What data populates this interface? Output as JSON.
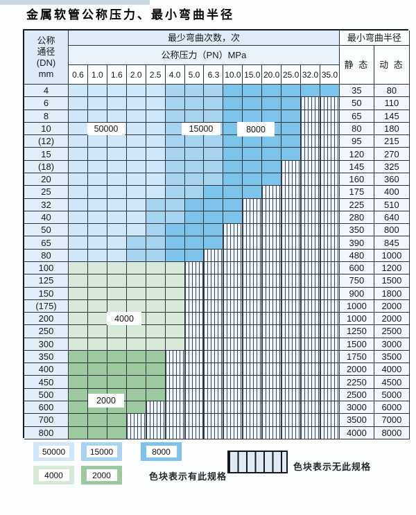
{
  "page": {
    "title": "金属软管公称压力、最小弯曲半径"
  },
  "table": {
    "dn_header_lines": [
      "公称",
      "通径",
      "(DN)",
      "mm"
    ],
    "bend_count_header": "最少弯曲次数，次",
    "pressure_header": "公称压力（PN）MPa",
    "radius_header": "最小弯曲半径",
    "static_header": "静 态",
    "dynamic_header": "动 态",
    "pressure_columns": [
      "0.6",
      "1.0",
      "1.6",
      "2.0",
      "2.5",
      "4.0",
      "5.0",
      "6.3",
      "10.0",
      "15.0",
      "20.0",
      "25.0",
      "32.0",
      "35.0"
    ],
    "zone_colors": {
      "b1": "#cfe7f8",
      "b2": "#a6d4f1",
      "b3": "#7cc4ec",
      "g1": "#d7ead9",
      "g2": "#9cc9a0"
    },
    "rows": [
      {
        "dn": "4",
        "static": "35",
        "dynamic": "80",
        "cells": [
          "b1",
          "b1",
          "b1",
          "b1",
          "b1",
          "b2",
          "b2",
          "b2",
          "b3",
          "b3",
          "b3",
          "b3",
          "b3",
          "b3"
        ]
      },
      {
        "dn": "6",
        "static": "50",
        "dynamic": "110",
        "cells": [
          "b1",
          "b1",
          "b1",
          "b1",
          "b1",
          "b2",
          "b2",
          "b2",
          "b3",
          "b3",
          "b3",
          "b3",
          "x",
          "x"
        ]
      },
      {
        "dn": "8",
        "static": "65",
        "dynamic": "145",
        "cells": [
          "b1",
          "b1",
          "b1",
          "b1",
          "b1",
          "b2",
          "b2",
          "b2",
          "b3",
          "b3",
          "b3",
          "b3",
          "x",
          "x"
        ]
      },
      {
        "dn": "10",
        "static": "80",
        "dynamic": "180",
        "cells": [
          "b1",
          "b1",
          "b1",
          "b1",
          "b1",
          "b2",
          "b2",
          "b2",
          "b3",
          "b3",
          "b3",
          "b3",
          "x",
          "x"
        ]
      },
      {
        "dn": "(12)",
        "static": "95",
        "dynamic": "215",
        "cells": [
          "b1",
          "b1",
          "b1",
          "b1",
          "b1",
          "b2",
          "b2",
          "b2",
          "b3",
          "b3",
          "b3",
          "b3",
          "x",
          "x"
        ]
      },
      {
        "dn": "15",
        "static": "120",
        "dynamic": "270",
        "cells": [
          "b1",
          "b1",
          "b1",
          "b1",
          "b1",
          "b2",
          "b2",
          "b2",
          "b3",
          "b3",
          "b3",
          "b3",
          "x",
          "x"
        ]
      },
      {
        "dn": "(18)",
        "static": "145",
        "dynamic": "325",
        "cells": [
          "b1",
          "b1",
          "b1",
          "b1",
          "b1",
          "b2",
          "b2",
          "b2",
          "b3",
          "b3",
          "b3",
          "x",
          "x",
          "x"
        ]
      },
      {
        "dn": "20",
        "static": "160",
        "dynamic": "360",
        "cells": [
          "b1",
          "b1",
          "b1",
          "b1",
          "b1",
          "b2",
          "b2",
          "b2",
          "b3",
          "b3",
          "b3",
          "x",
          "x",
          "x"
        ]
      },
      {
        "dn": "25",
        "static": "175",
        "dynamic": "400",
        "cells": [
          "b1",
          "b1",
          "b1",
          "b1",
          "b1",
          "b2",
          "b2",
          "b3",
          "b3",
          "b3",
          "x",
          "x",
          "x",
          "x"
        ]
      },
      {
        "dn": "32",
        "static": "225",
        "dynamic": "510",
        "cells": [
          "b1",
          "b1",
          "b1",
          "b1",
          "b2",
          "b2",
          "b3",
          "b3",
          "b3",
          "x",
          "x",
          "x",
          "x",
          "x"
        ]
      },
      {
        "dn": "40",
        "static": "280",
        "dynamic": "640",
        "cells": [
          "b1",
          "b1",
          "b1",
          "b1",
          "b2",
          "b2",
          "b3",
          "b3",
          "b3",
          "x",
          "x",
          "x",
          "x",
          "x"
        ]
      },
      {
        "dn": "50",
        "static": "350",
        "dynamic": "800",
        "cells": [
          "b1",
          "b1",
          "b1",
          "b1",
          "b2",
          "b3",
          "b3",
          "b3",
          "x",
          "x",
          "x",
          "x",
          "x",
          "x"
        ]
      },
      {
        "dn": "65",
        "static": "390",
        "dynamic": "845",
        "cells": [
          "b1",
          "b1",
          "b1",
          "b2",
          "b2",
          "b3",
          "b3",
          "b3",
          "x",
          "x",
          "x",
          "x",
          "x",
          "x"
        ]
      },
      {
        "dn": "80",
        "static": "480",
        "dynamic": "1000",
        "cells": [
          "b1",
          "b1",
          "b1",
          "b2",
          "b2",
          "b3",
          "b3",
          "x",
          "x",
          "x",
          "x",
          "x",
          "x",
          "x"
        ]
      },
      {
        "dn": "100",
        "static": "600",
        "dynamic": "1200",
        "cells": [
          "g1",
          "g1",
          "g1",
          "g1",
          "g1",
          "g1",
          "x",
          "x",
          "x",
          "x",
          "x",
          "x",
          "x",
          "x"
        ]
      },
      {
        "dn": "125",
        "static": "750",
        "dynamic": "1500",
        "cells": [
          "g1",
          "g1",
          "g1",
          "g1",
          "g1",
          "g1",
          "x",
          "x",
          "x",
          "x",
          "x",
          "x",
          "x",
          "x"
        ]
      },
      {
        "dn": "150",
        "static": "900",
        "dynamic": "1800",
        "cells": [
          "g1",
          "g1",
          "g1",
          "g1",
          "g1",
          "g1",
          "x",
          "x",
          "x",
          "x",
          "x",
          "x",
          "x",
          "x"
        ]
      },
      {
        "dn": "(175)",
        "static": "1000",
        "dynamic": "2000",
        "cells": [
          "g1",
          "g1",
          "g1",
          "g1",
          "g1",
          "g1",
          "x",
          "x",
          "x",
          "x",
          "x",
          "x",
          "x",
          "x"
        ]
      },
      {
        "dn": "200",
        "static": "1000",
        "dynamic": "2000",
        "cells": [
          "g1",
          "g1",
          "g1",
          "g1",
          "g1",
          "g1",
          "x",
          "x",
          "x",
          "x",
          "x",
          "x",
          "x",
          "x"
        ]
      },
      {
        "dn": "250",
        "static": "1250",
        "dynamic": "2500",
        "cells": [
          "g1",
          "g1",
          "g1",
          "g1",
          "g1",
          "g1",
          "x",
          "x",
          "x",
          "x",
          "x",
          "x",
          "x",
          "x"
        ]
      },
      {
        "dn": "300",
        "static": "1500",
        "dynamic": "3000",
        "cells": [
          "g1",
          "g1",
          "g1",
          "g1",
          "g1",
          "g1",
          "x",
          "x",
          "x",
          "x",
          "x",
          "x",
          "x",
          "x"
        ]
      },
      {
        "dn": "350",
        "static": "1750",
        "dynamic": "3500",
        "cells": [
          "g2",
          "g2",
          "g2",
          "g2",
          "g2",
          "x",
          "x",
          "x",
          "x",
          "x",
          "x",
          "x",
          "x",
          "x"
        ]
      },
      {
        "dn": "400",
        "static": "2000",
        "dynamic": "4000",
        "cells": [
          "g2",
          "g2",
          "g2",
          "g2",
          "g2",
          "x",
          "x",
          "x",
          "x",
          "x",
          "x",
          "x",
          "x",
          "x"
        ]
      },
      {
        "dn": "450",
        "static": "2250",
        "dynamic": "4500",
        "cells": [
          "g2",
          "g2",
          "g2",
          "g2",
          "g2",
          "x",
          "x",
          "x",
          "x",
          "x",
          "x",
          "x",
          "x",
          "x"
        ]
      },
      {
        "dn": "500",
        "static": "2500",
        "dynamic": "5000",
        "cells": [
          "g2",
          "g2",
          "g2",
          "g2",
          "g2",
          "x",
          "x",
          "x",
          "x",
          "x",
          "x",
          "x",
          "x",
          "x"
        ]
      },
      {
        "dn": "600",
        "static": "3000",
        "dynamic": "6000",
        "cells": [
          "g2",
          "g2",
          "g2",
          "g2",
          "x",
          "x",
          "x",
          "x",
          "x",
          "x",
          "x",
          "x",
          "x",
          "x"
        ]
      },
      {
        "dn": "700",
        "static": "3500",
        "dynamic": "7000",
        "cells": [
          "g2",
          "g2",
          "g2",
          "x",
          "x",
          "x",
          "x",
          "x",
          "x",
          "x",
          "x",
          "x",
          "x",
          "x"
        ]
      },
      {
        "dn": "800",
        "static": "4000",
        "dynamic": "8000",
        "cells": [
          "g2",
          "g2",
          "g2",
          "x",
          "x",
          "x",
          "x",
          "x",
          "x",
          "x",
          "x",
          "x",
          "x",
          "x"
        ]
      }
    ]
  },
  "band_labels": {
    "b50000": "50000",
    "b15000": "15000",
    "b8000": "8000",
    "b4000": "4000",
    "b2000": "2000"
  },
  "legend": {
    "swatches": [
      {
        "value": "50000",
        "zone": "b1"
      },
      {
        "value": "15000",
        "zone": "b2"
      },
      {
        "value": "8000",
        "zone": "b3"
      },
      {
        "value": "4000",
        "zone": "g1"
      },
      {
        "value": "2000",
        "zone": "g2"
      }
    ],
    "has_spec_text": "色块表示有此规格",
    "no_spec_text": "色块表示无此规格"
  }
}
